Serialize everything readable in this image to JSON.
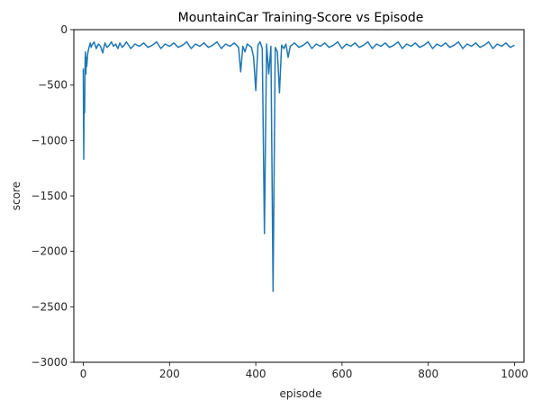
{
  "chart_data": {
    "type": "line",
    "title": "MountainCar Training-Score vs Episode",
    "xlabel": "episode",
    "ylabel": "score",
    "xlim": [
      -22,
      1022
    ],
    "ylim": [
      -3000,
      0
    ],
    "x_ticks": [
      0,
      200,
      400,
      600,
      800,
      1000
    ],
    "y_ticks": [
      0,
      -500,
      -1000,
      -1500,
      -2000,
      -2500,
      -3000
    ],
    "x_tick_labels": [
      "0",
      "200",
      "400",
      "600",
      "800",
      "1000"
    ],
    "y_tick_labels": [
      "0",
      "−500",
      "−1000",
      "−1500",
      "−2000",
      "−2500",
      "−3000"
    ],
    "grid": false,
    "line_color": "#1f77b4",
    "series": [
      {
        "x": [
          0,
          1,
          2,
          3,
          4,
          5,
          6,
          7,
          8,
          10,
          12,
          14,
          16,
          18,
          20,
          25,
          30,
          35,
          40,
          45,
          50,
          55,
          60,
          65,
          70,
          75,
          80,
          85,
          90,
          95,
          100,
          110,
          120,
          130,
          140,
          150,
          160,
          170,
          180,
          190,
          200,
          210,
          220,
          230,
          240,
          250,
          260,
          270,
          280,
          290,
          300,
          310,
          320,
          330,
          340,
          350,
          360,
          365,
          370,
          375,
          380,
          390,
          395,
          400,
          405,
          410,
          415,
          420,
          425,
          430,
          435,
          440,
          445,
          450,
          455,
          460,
          465,
          470,
          475,
          480,
          490,
          500,
          510,
          520,
          530,
          540,
          550,
          560,
          570,
          580,
          590,
          600,
          610,
          620,
          630,
          640,
          650,
          660,
          670,
          680,
          690,
          700,
          710,
          720,
          730,
          740,
          750,
          760,
          770,
          780,
          790,
          800,
          810,
          820,
          830,
          840,
          850,
          860,
          870,
          880,
          890,
          900,
          910,
          920,
          930,
          940,
          950,
          960,
          970,
          980,
          990,
          1000
        ],
        "y": [
          -350,
          -1170,
          -600,
          -750,
          -300,
          -200,
          -400,
          -250,
          -330,
          -220,
          -180,
          -150,
          -120,
          -160,
          -140,
          -110,
          -170,
          -130,
          -150,
          -210,
          -120,
          -160,
          -140,
          -110,
          -150,
          -130,
          -170,
          -120,
          -160,
          -140,
          -110,
          -170,
          -130,
          -150,
          -120,
          -160,
          -140,
          -110,
          -170,
          -130,
          -150,
          -120,
          -160,
          -140,
          -110,
          -170,
          -130,
          -150,
          -120,
          -160,
          -140,
          -110,
          -170,
          -130,
          -150,
          -120,
          -160,
          -380,
          -150,
          -200,
          -130,
          -160,
          -250,
          -550,
          -140,
          -110,
          -170,
          -1840,
          -130,
          -400,
          -150,
          -2360,
          -160,
          -200,
          -570,
          -140,
          -170,
          -130,
          -250,
          -150,
          -120,
          -160,
          -140,
          -110,
          -170,
          -130,
          -150,
          -120,
          -160,
          -140,
          -110,
          -170,
          -130,
          -150,
          -120,
          -160,
          -140,
          -110,
          -170,
          -130,
          -150,
          -120,
          -160,
          -140,
          -110,
          -170,
          -130,
          -150,
          -120,
          -160,
          -140,
          -110,
          -170,
          -130,
          -150,
          -120,
          -160,
          -140,
          -110,
          -170,
          -130,
          -150,
          -120,
          -160,
          -140,
          -110,
          -170,
          -130,
          -150,
          -120,
          -160,
          -140
        ]
      }
    ]
  }
}
